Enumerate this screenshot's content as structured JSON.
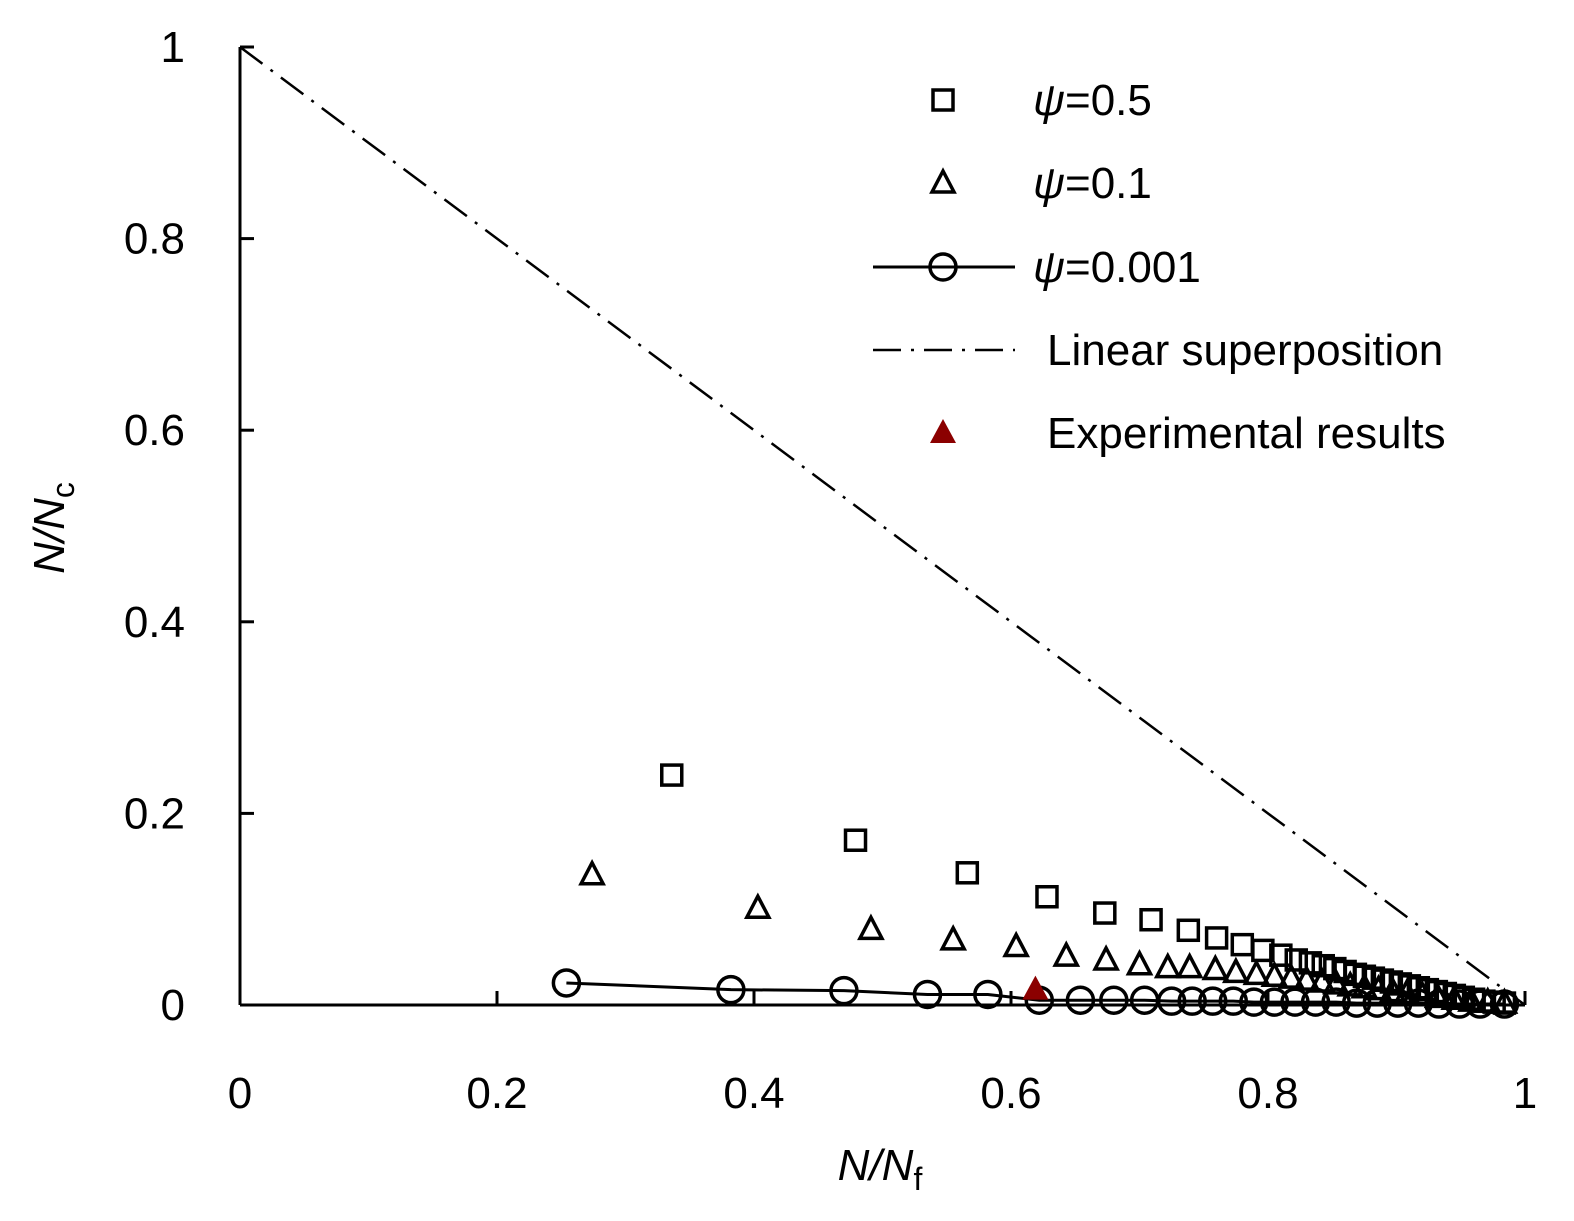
{
  "chart_data": {
    "type": "scatter",
    "xlabel": {
      "main": "N/N",
      "sub": "f"
    },
    "ylabel": {
      "main": "N/N",
      "sub": "c"
    },
    "xlim": [
      0,
      1
    ],
    "ylim": [
      0,
      1
    ],
    "xticks": [
      "0",
      "0.2",
      "0.4",
      "0.6",
      "0.8",
      "1"
    ],
    "yticks": [
      "0",
      "0.2",
      "0.4",
      "0.6",
      "0.8",
      "1"
    ],
    "xtick_values": [
      0,
      0.2,
      0.4,
      0.6,
      0.8,
      1
    ],
    "ytick_values": [
      0,
      0.2,
      0.4,
      0.6,
      0.8,
      1
    ],
    "grid": false,
    "legend_position": "top-right",
    "series": [
      {
        "name": "ψ=0.5",
        "psi": "ψ",
        "value_label": "=0.5",
        "marker": "square",
        "line": false,
        "x": [
          0.336,
          0.479,
          0.566,
          0.628,
          0.673,
          0.709,
          0.738,
          0.76,
          0.78,
          0.796,
          0.81,
          0.822,
          0.833,
          0.843,
          0.852,
          0.86,
          0.868,
          0.875,
          0.882,
          0.889,
          0.896,
          0.903,
          0.91,
          0.917,
          0.924,
          0.931,
          0.938,
          0.945,
          0.952,
          0.96,
          0.968,
          0.976,
          0.984
        ],
        "y": [
          0.24,
          0.172,
          0.138,
          0.113,
          0.096,
          0.089,
          0.078,
          0.07,
          0.063,
          0.057,
          0.052,
          0.047,
          0.044,
          0.041,
          0.038,
          0.035,
          0.032,
          0.03,
          0.028,
          0.026,
          0.024,
          0.022,
          0.02,
          0.018,
          0.016,
          0.014,
          0.012,
          0.01,
          0.008,
          0.006,
          0.004,
          0.003,
          0.002
        ]
      },
      {
        "name": "ψ=0.1",
        "psi": "ψ",
        "value_label": "=0.1",
        "marker": "triangle",
        "line": false,
        "x": [
          0.274,
          0.403,
          0.491,
          0.555,
          0.604,
          0.643,
          0.674,
          0.7,
          0.722,
          0.739,
          0.759,
          0.775,
          0.791,
          0.805,
          0.818,
          0.83,
          0.842,
          0.853,
          0.864,
          0.875,
          0.886,
          0.897,
          0.908,
          0.92,
          0.932,
          0.945,
          0.958,
          0.971,
          0.984
        ],
        "y": [
          0.136,
          0.101,
          0.079,
          0.068,
          0.061,
          0.051,
          0.047,
          0.042,
          0.039,
          0.039,
          0.037,
          0.034,
          0.032,
          0.03,
          0.028,
          0.026,
          0.024,
          0.022,
          0.02,
          0.018,
          0.016,
          0.014,
          0.012,
          0.01,
          0.008,
          0.006,
          0.004,
          0.003,
          0.002
        ]
      },
      {
        "name": "ψ=0.001",
        "psi": "ψ",
        "value_label": "=0.001",
        "marker": "circle",
        "line": true,
        "x": [
          0.254,
          0.382,
          0.47,
          0.535,
          0.582,
          0.622,
          0.654,
          0.68,
          0.704,
          0.725,
          0.741,
          0.757,
          0.773,
          0.789,
          0.805,
          0.821,
          0.837,
          0.853,
          0.869,
          0.885,
          0.901,
          0.917,
          0.933,
          0.949,
          0.965,
          0.984
        ],
        "y": [
          0.023,
          0.016,
          0.015,
          0.011,
          0.011,
          0.005,
          0.005,
          0.005,
          0.005,
          0.004,
          0.004,
          0.004,
          0.004,
          0.003,
          0.003,
          0.003,
          0.003,
          0.003,
          0.002,
          0.002,
          0.002,
          0.002,
          0.001,
          0.001,
          0.001,
          0.001
        ]
      },
      {
        "name": "Linear superposition",
        "marker": "none",
        "line": true,
        "dash": "dash-dot",
        "x": [
          0,
          1
        ],
        "y": [
          1,
          0
        ]
      },
      {
        "name": "Experimental results",
        "marker": "filled-triangle",
        "line": false,
        "color": "#8b0000",
        "x": [
          0.619
        ],
        "y": [
          0.016
        ]
      }
    ]
  }
}
